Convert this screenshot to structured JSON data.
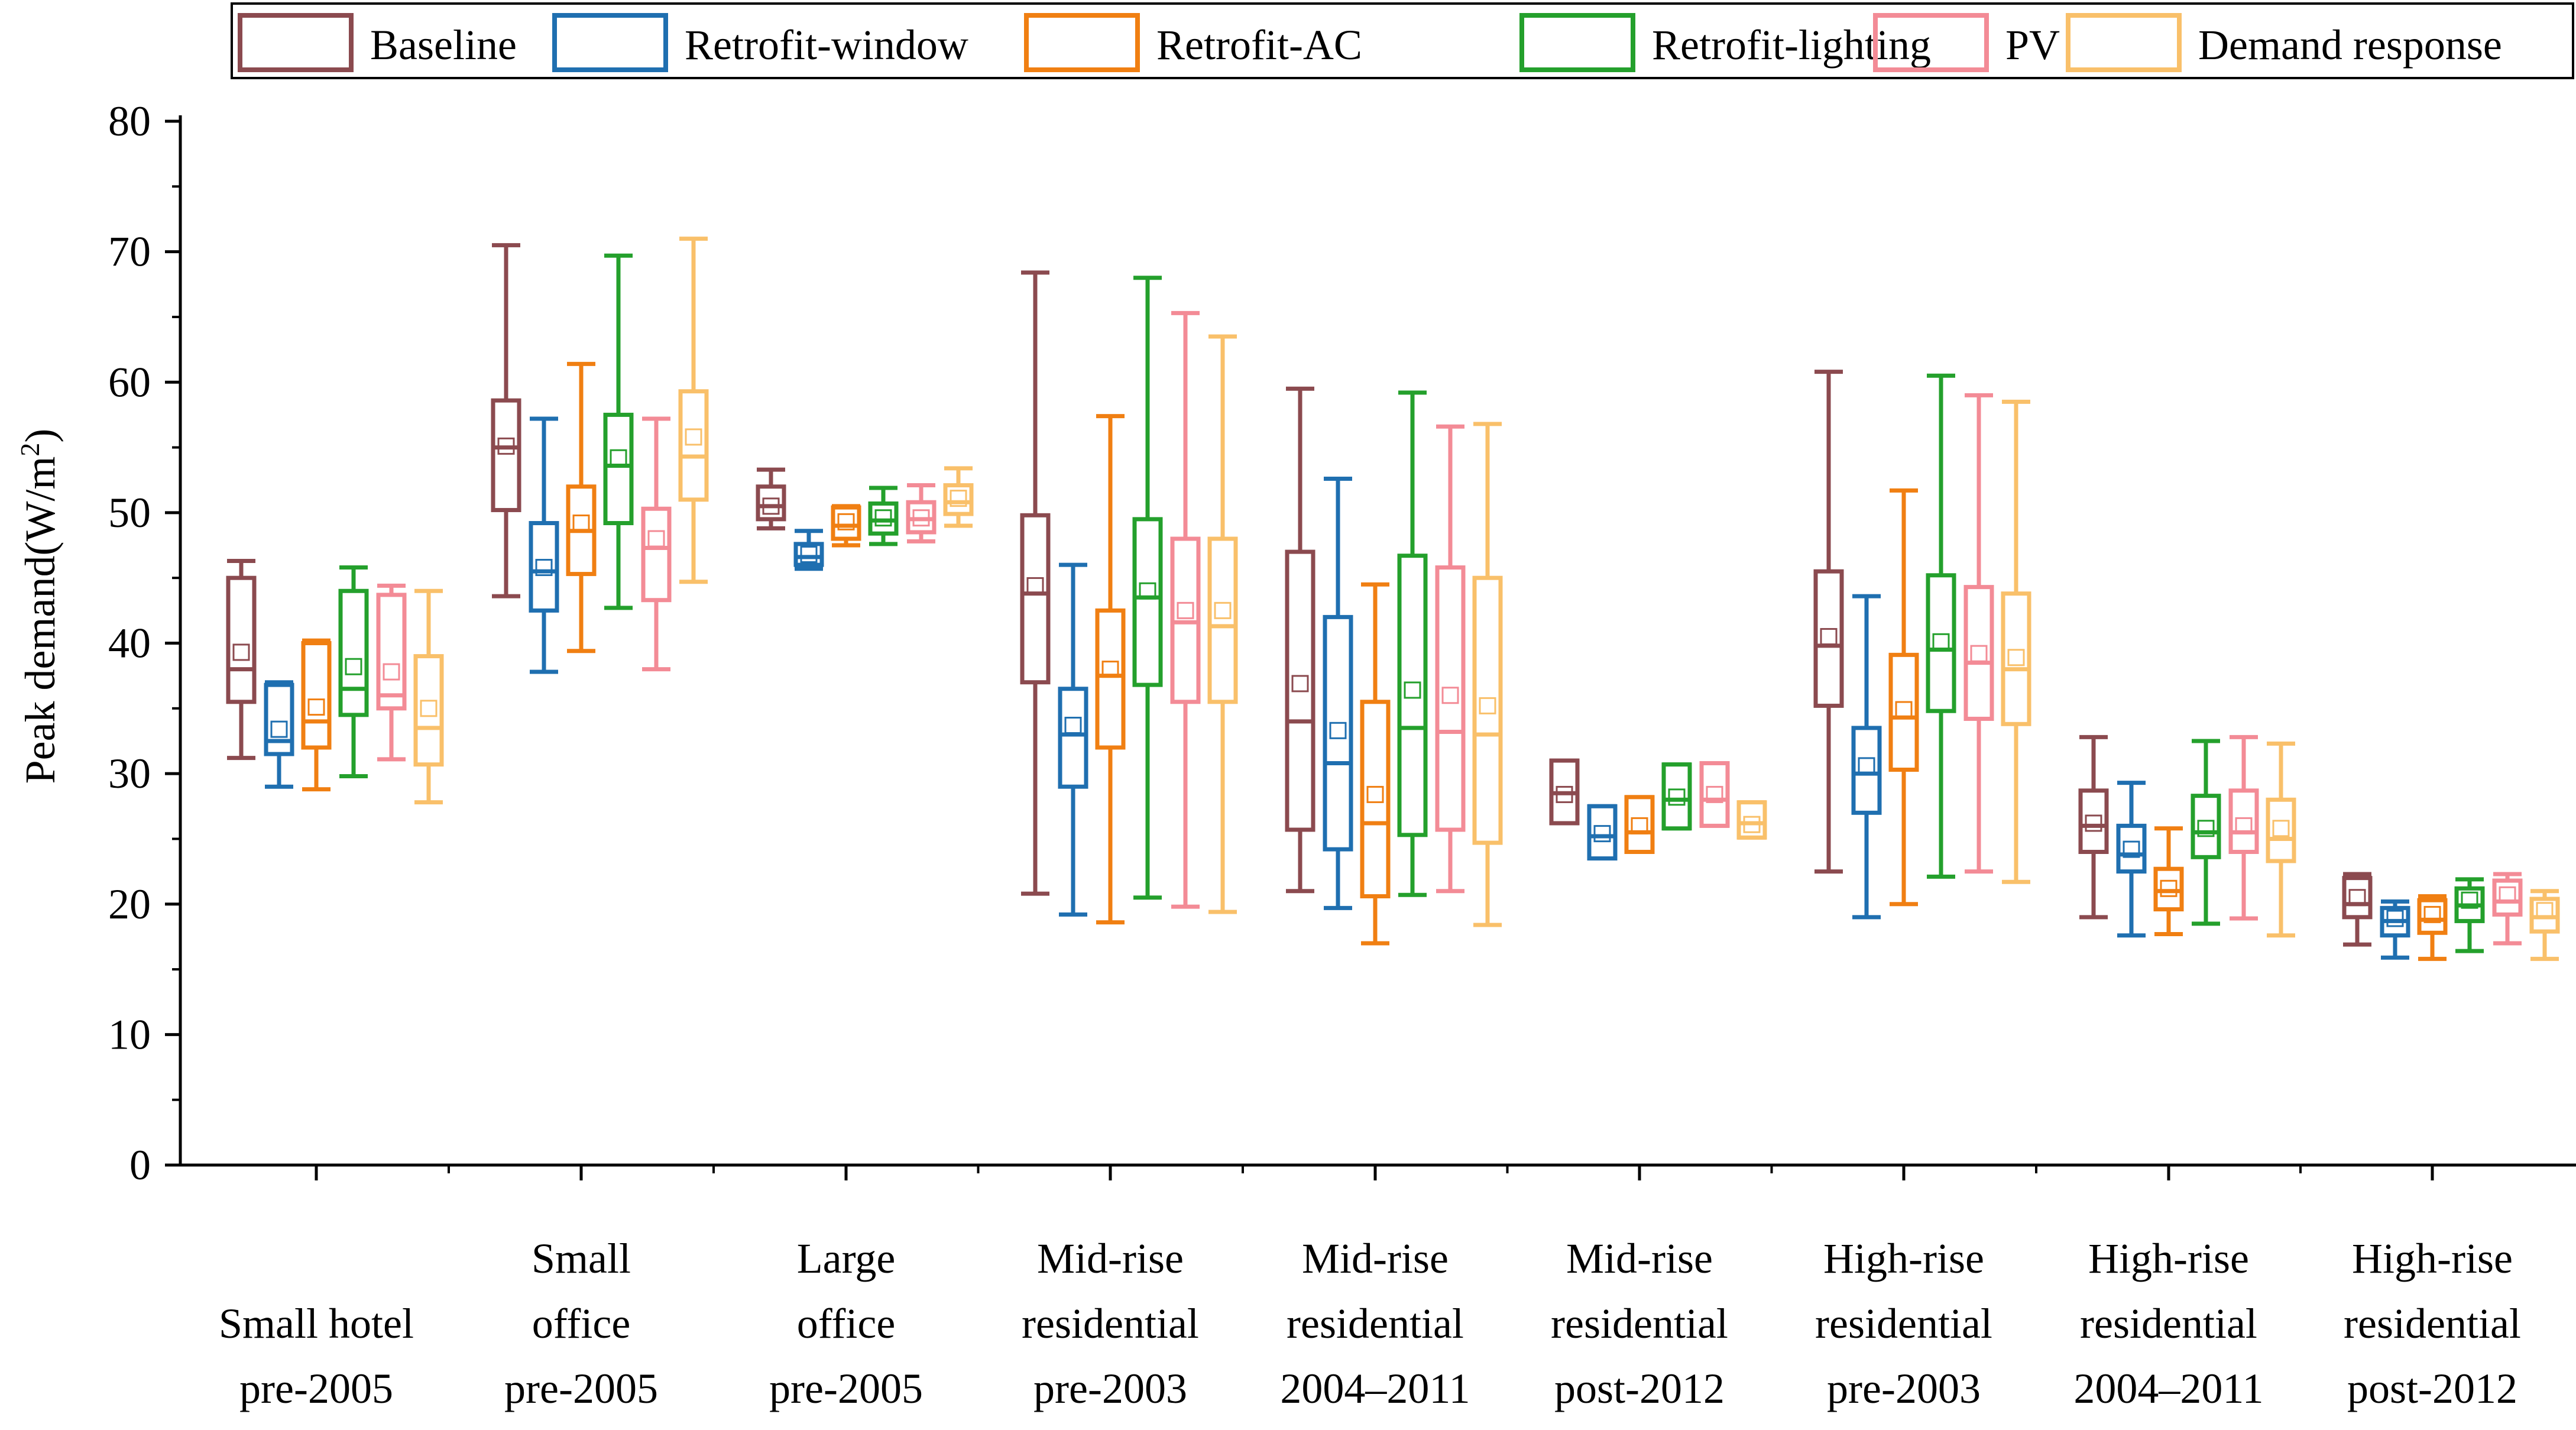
{
  "chart_data": {
    "type": "boxplot",
    "title": "",
    "xlabel": "",
    "ylabel": "Peak demand(W/m2)",
    "ylabel_parts": {
      "main": "Peak demand(W/m",
      "sup": "2",
      "tail": ")"
    },
    "ylim": [
      0,
      80
    ],
    "yticks": [
      0,
      10,
      20,
      30,
      40,
      50,
      60,
      70,
      80
    ],
    "grid": false,
    "legend_position": "top",
    "categories": [
      [
        "Small hotel",
        "pre-2005"
      ],
      [
        "Small",
        "office",
        "pre-2005"
      ],
      [
        "Large",
        "office",
        "pre-2005"
      ],
      [
        "Mid-rise",
        "residential",
        "pre-2003"
      ],
      [
        "Mid-rise",
        "residential",
        "2004–2011"
      ],
      [
        "Mid-rise",
        "residential",
        "post-2012"
      ],
      [
        "High-rise",
        "residential",
        "pre-2003"
      ],
      [
        "High-rise",
        "residential",
        "2004–2011"
      ],
      [
        "High-rise",
        "residential",
        "post-2012"
      ]
    ],
    "series": [
      {
        "name": "Baseline",
        "color": "#8B4A4F",
        "boxes": [
          {
            "min": 31.2,
            "q1": 35.5,
            "median": 38,
            "q3": 45,
            "max": 46.3,
            "mean": 39.3
          },
          {
            "min": 43.6,
            "q1": 50.2,
            "median": 55,
            "q3": 58.6,
            "max": 70.5,
            "mean": 55.1
          },
          {
            "min": 48.8,
            "q1": 49.5,
            "median": 50.5,
            "q3": 52,
            "max": 53.3,
            "mean": 50.5
          },
          {
            "min": 20.8,
            "q1": 37,
            "median": 43.8,
            "q3": 49.8,
            "max": 68.4,
            "mean": 44.4
          },
          {
            "min": 21,
            "q1": 25.7,
            "median": 34,
            "q3": 47,
            "max": 59.5,
            "mean": 36.9
          },
          {
            "min": 26.2,
            "q1": 26.2,
            "median": 28.5,
            "q3": 31,
            "max": 31,
            "mean": 28.4
          },
          {
            "min": 22.5,
            "q1": 35.2,
            "median": 39.8,
            "q3": 45.5,
            "max": 60.8,
            "mean": 40.5
          },
          {
            "min": 19,
            "q1": 24,
            "median": 26,
            "q3": 28.7,
            "max": 32.8,
            "mean": 26.2
          },
          {
            "min": 16.9,
            "q1": 19,
            "median": 20,
            "q3": 22,
            "max": 22.3,
            "mean": 20.5
          }
        ]
      },
      {
        "name": "Retrofit-window",
        "color": "#1F6FB0",
        "boxes": [
          {
            "min": 29,
            "q1": 31.5,
            "median": 32.5,
            "q3": 36.8,
            "max": 37,
            "mean": 33.4
          },
          {
            "min": 37.8,
            "q1": 42.5,
            "median": 45.5,
            "q3": 49.2,
            "max": 57.2,
            "mean": 45.8
          },
          {
            "min": 45.7,
            "q1": 46,
            "median": 46.6,
            "q3": 47.6,
            "max": 48.6,
            "mean": 46.8
          },
          {
            "min": 19.2,
            "q1": 29,
            "median": 33,
            "q3": 36.5,
            "max": 46,
            "mean": 33.7
          },
          {
            "min": 19.7,
            "q1": 24.2,
            "median": 30.8,
            "q3": 42,
            "max": 52.6,
            "mean": 33.3
          },
          {
            "min": 23.5,
            "q1": 23.5,
            "median": 25.2,
            "q3": 27.5,
            "max": 27.5,
            "mean": 25.4
          },
          {
            "min": 19,
            "q1": 27,
            "median": 30,
            "q3": 33.5,
            "max": 43.6,
            "mean": 30.6
          },
          {
            "min": 17.6,
            "q1": 22.5,
            "median": 23.8,
            "q3": 26,
            "max": 29.3,
            "mean": 24.2
          },
          {
            "min": 15.9,
            "q1": 17.6,
            "median": 18.7,
            "q3": 19.7,
            "max": 20.2,
            "mean": 18.9
          }
        ]
      },
      {
        "name": "Retrofit-AC",
        "color": "#F07F12",
        "boxes": [
          {
            "min": 28.8,
            "q1": 32,
            "median": 34,
            "q3": 40,
            "max": 40.2,
            "mean": 35.1
          },
          {
            "min": 39.4,
            "q1": 45.3,
            "median": 48.6,
            "q3": 52,
            "max": 61.4,
            "mean": 49.2
          },
          {
            "min": 47.5,
            "q1": 48,
            "median": 49,
            "q3": 50.4,
            "max": 50.5,
            "mean": 49.3
          },
          {
            "min": 18.6,
            "q1": 32,
            "median": 37.5,
            "q3": 42.5,
            "max": 57.4,
            "mean": 38
          },
          {
            "min": 17,
            "q1": 20.6,
            "median": 26.2,
            "q3": 35.5,
            "max": 44.5,
            "mean": 28.4
          },
          {
            "min": 24,
            "q1": 24,
            "median": 25.5,
            "q3": 28.2,
            "max": 28.2,
            "mean": 26
          },
          {
            "min": 20,
            "q1": 30.3,
            "median": 34.3,
            "q3": 39.1,
            "max": 51.7,
            "mean": 34.9
          },
          {
            "min": 17.7,
            "q1": 19.6,
            "median": 21,
            "q3": 22.7,
            "max": 25.8,
            "mean": 21.2
          },
          {
            "min": 15.8,
            "q1": 17.8,
            "median": 18.8,
            "q3": 20.3,
            "max": 20.6,
            "mean": 19.2
          }
        ]
      },
      {
        "name": "Retrofit-lighting",
        "color": "#24A02C",
        "boxes": [
          {
            "min": 29.8,
            "q1": 34.5,
            "median": 36.5,
            "q3": 44,
            "max": 45.8,
            "mean": 38.2
          },
          {
            "min": 42.7,
            "q1": 49.2,
            "median": 53.6,
            "q3": 57.5,
            "max": 69.7,
            "mean": 54.2
          },
          {
            "min": 47.6,
            "q1": 48.4,
            "median": 49.4,
            "q3": 50.7,
            "max": 51.9,
            "mean": 49.6
          },
          {
            "min": 20.5,
            "q1": 36.8,
            "median": 43.5,
            "q3": 49.5,
            "max": 68,
            "mean": 44
          },
          {
            "min": 20.7,
            "q1": 25.3,
            "median": 33.5,
            "q3": 46.7,
            "max": 59.2,
            "mean": 36.4
          },
          {
            "min": 25.8,
            "q1": 25.8,
            "median": 28,
            "q3": 30.7,
            "max": 30.7,
            "mean": 28.2
          },
          {
            "min": 22.1,
            "q1": 34.8,
            "median": 39.5,
            "q3": 45.2,
            "max": 60.5,
            "mean": 40.1
          },
          {
            "min": 18.5,
            "q1": 23.6,
            "median": 25.5,
            "q3": 28.3,
            "max": 32.5,
            "mean": 25.8
          },
          {
            "min": 16.4,
            "q1": 18.7,
            "median": 19.9,
            "q3": 21.2,
            "max": 21.9,
            "mean": 20.3
          }
        ]
      },
      {
        "name": "PV",
        "color": "#F38B96",
        "boxes": [
          {
            "min": 31.1,
            "q1": 35,
            "median": 36,
            "q3": 43.7,
            "max": 44.4,
            "mean": 37.8
          },
          {
            "min": 38,
            "q1": 43.3,
            "median": 47.3,
            "q3": 50.3,
            "max": 57.2,
            "mean": 48
          },
          {
            "min": 47.8,
            "q1": 48.5,
            "median": 49.5,
            "q3": 50.8,
            "max": 52.1,
            "mean": 49.6
          },
          {
            "min": 19.8,
            "q1": 35.5,
            "median": 41.6,
            "q3": 48,
            "max": 65.3,
            "mean": 42.5
          },
          {
            "min": 21,
            "q1": 25.7,
            "median": 33.2,
            "q3": 45.8,
            "max": 56.6,
            "mean": 36
          },
          {
            "min": 26,
            "q1": 26,
            "median": 28,
            "q3": 30.8,
            "max": 30.8,
            "mean": 28.4
          },
          {
            "min": 22.5,
            "q1": 34.2,
            "median": 38.5,
            "q3": 44.3,
            "max": 59,
            "mean": 39.2
          },
          {
            "min": 18.9,
            "q1": 24,
            "median": 25.5,
            "q3": 28.7,
            "max": 32.8,
            "mean": 26
          },
          {
            "min": 17,
            "q1": 19.2,
            "median": 20.2,
            "q3": 21.8,
            "max": 22.3,
            "mean": 20.7
          }
        ]
      },
      {
        "name": "Demand response",
        "color": "#F9C06A",
        "boxes": [
          {
            "min": 27.8,
            "q1": 30.7,
            "median": 33.5,
            "q3": 39,
            "max": 44,
            "mean": 35
          },
          {
            "min": 44.7,
            "q1": 51,
            "median": 54.3,
            "q3": 59.3,
            "max": 71,
            "mean": 55.8
          },
          {
            "min": 49,
            "q1": 49.9,
            "median": 50.8,
            "q3": 52.1,
            "max": 53.4,
            "mean": 51.1
          },
          {
            "min": 19.4,
            "q1": 35.5,
            "median": 41.3,
            "q3": 48,
            "max": 63.5,
            "mean": 42.5
          },
          {
            "min": 18.4,
            "q1": 24.7,
            "median": 33,
            "q3": 45,
            "max": 56.8,
            "mean": 35.2
          },
          {
            "min": 25.1,
            "q1": 25.1,
            "median": 26.2,
            "q3": 27.8,
            "max": 27.8,
            "mean": 26.1
          },
          {
            "min": 21.7,
            "q1": 33.8,
            "median": 38,
            "q3": 43.8,
            "max": 58.5,
            "mean": 38.9
          },
          {
            "min": 17.6,
            "q1": 23.3,
            "median": 25,
            "q3": 28,
            "max": 32.3,
            "mean": 25.8
          },
          {
            "min": 15.8,
            "q1": 17.9,
            "median": 19,
            "q3": 20.4,
            "max": 21,
            "mean": 19.5
          }
        ]
      }
    ]
  }
}
